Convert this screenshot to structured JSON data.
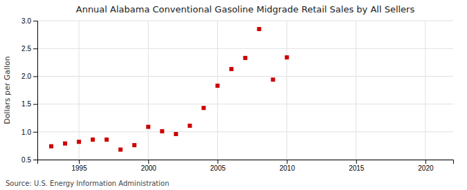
{
  "chart_data": {
    "type": "scatter",
    "title": "Annual Alabama Conventional Gasoline Midgrade Retail Sales by All Sellers",
    "ylabel": "Dollars per Gallon",
    "source": "Source: U.S. Energy Information Administration",
    "x": [
      1993,
      1994,
      1995,
      1996,
      1997,
      1998,
      1999,
      2000,
      2001,
      2002,
      2003,
      2004,
      2005,
      2006,
      2007,
      2008,
      2009,
      2010
    ],
    "values": [
      0.74,
      0.79,
      0.82,
      0.86,
      0.86,
      0.68,
      0.76,
      1.09,
      1.01,
      0.96,
      1.11,
      1.43,
      1.83,
      2.13,
      2.33,
      2.85,
      1.94,
      2.34
    ],
    "color": "#cc0000",
    "marker": "square",
    "xlim": [
      1992,
      2022
    ],
    "xticks": [
      1995,
      2000,
      2005,
      2010,
      2015,
      2020
    ],
    "ylim": [
      0.5,
      3.0
    ],
    "yticks": [
      0.5,
      {
        "value": 1.0,
        "label": "1.0"
      },
      1.5,
      {
        "value": 2.0,
        "label": "2.0"
      },
      2.5,
      {
        "value": 3.0,
        "label": "3.0"
      }
    ],
    "grid": true
  }
}
